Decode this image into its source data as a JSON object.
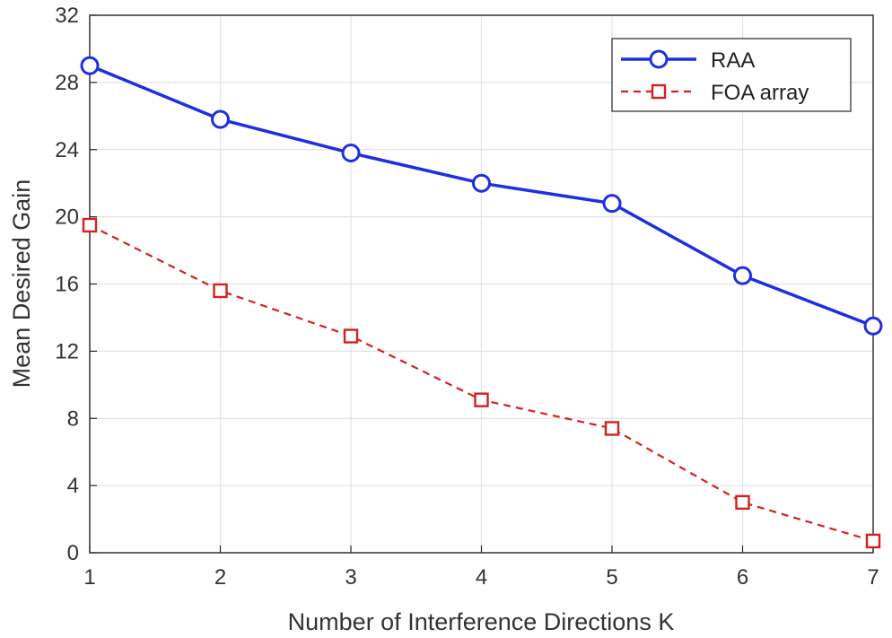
{
  "chart_data": {
    "type": "line",
    "title": "",
    "xlabel": "Number of Interference Directions K",
    "ylabel": "Mean Desired Gain",
    "x": [
      1,
      2,
      3,
      4,
      5,
      6,
      7
    ],
    "xlim": [
      1,
      7
    ],
    "ylim": [
      0,
      32
    ],
    "xticks": [
      "1",
      "2",
      "3",
      "4",
      "5",
      "6",
      "7"
    ],
    "yticks": [
      "0",
      "4",
      "8",
      "12",
      "16",
      "20",
      "24",
      "28",
      "32"
    ],
    "grid": true,
    "legend_position": "top-right",
    "series": [
      {
        "name": "RAA",
        "values": [
          29.0,
          25.8,
          23.8,
          22.0,
          20.8,
          16.5,
          13.5
        ],
        "color": "#1f2fe0",
        "line_style": "solid",
        "marker": "circle"
      },
      {
        "name": "FOA array",
        "values": [
          19.5,
          15.6,
          12.9,
          9.1,
          7.4,
          3.0,
          0.7
        ],
        "color": "#d42020",
        "line_style": "dashed",
        "marker": "square"
      }
    ]
  }
}
